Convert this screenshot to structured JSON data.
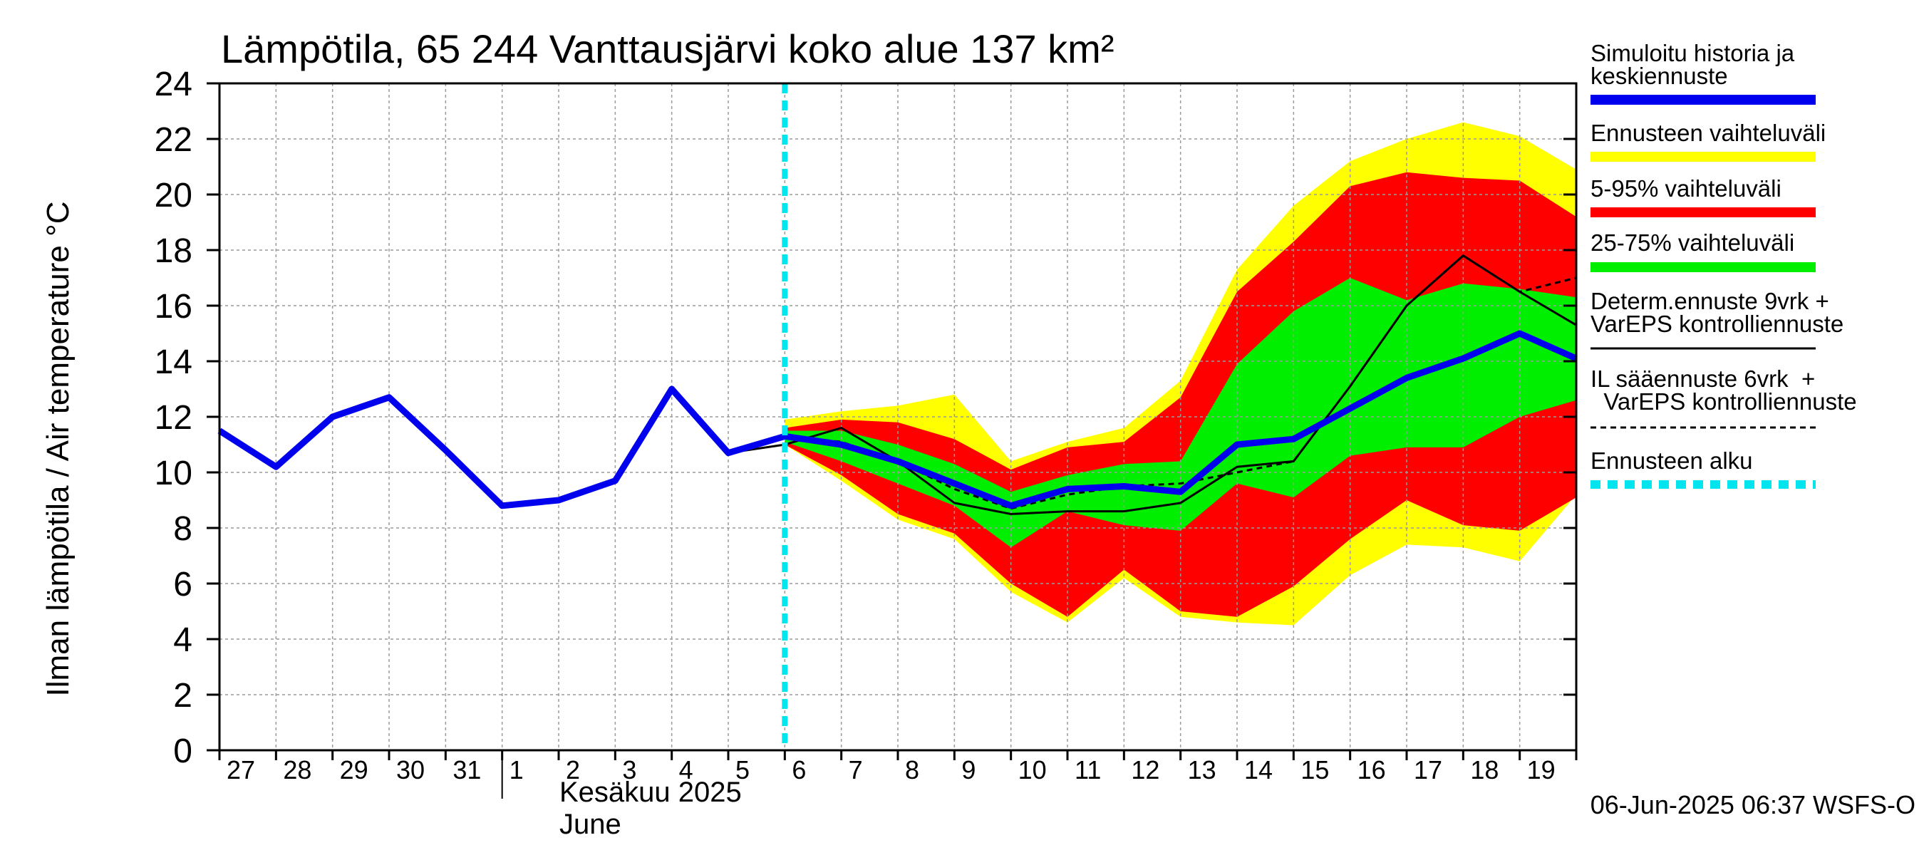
{
  "chart_data": {
    "type": "line",
    "title": "Lämpötila, 65 244 Vanttausjärvi koko alue 137 km²",
    "ylabel": "Ilman lämpötila / Air temperature   °C",
    "ylim": [
      0,
      24
    ],
    "yticks": [
      0,
      2,
      4,
      6,
      8,
      10,
      12,
      14,
      16,
      18,
      20,
      22,
      24
    ],
    "x_tick_labels": [
      "27",
      "28",
      "29",
      "30",
      "31",
      "1",
      "2",
      "3",
      "4",
      "5",
      "6",
      "7",
      "8",
      "9",
      "10",
      "11",
      "12",
      "13",
      "14",
      "15",
      "16",
      "17",
      "18",
      "19"
    ],
    "month_label_fi": "Kesäkuu  2025",
    "month_label_en": "June",
    "grid": true,
    "forecast_start_day": 10,
    "bands": {
      "full_range": {
        "x": [
          10,
          11,
          12,
          13,
          14,
          15,
          16,
          17,
          18,
          19,
          20,
          21,
          22,
          23,
          24
        ],
        "upper": [
          11.9,
          12.2,
          12.4,
          12.8,
          10.4,
          11.1,
          11.6,
          13.3,
          17.3,
          19.6,
          21.2,
          22.0,
          22.6,
          22.1,
          20.9
        ],
        "lower": [
          11.0,
          9.7,
          8.3,
          7.6,
          5.7,
          4.6,
          6.2,
          4.8,
          4.6,
          4.5,
          6.3,
          7.4,
          7.3,
          6.8,
          9.2
        ]
      },
      "p5_95": {
        "x": [
          10,
          11,
          12,
          13,
          14,
          15,
          16,
          17,
          18,
          19,
          20,
          21,
          22,
          23,
          24
        ],
        "upper": [
          11.6,
          11.9,
          11.8,
          11.2,
          10.1,
          10.9,
          11.1,
          12.7,
          16.5,
          18.3,
          20.3,
          20.8,
          20.6,
          20.5,
          19.2
        ],
        "lower": [
          11.0,
          9.9,
          8.5,
          7.8,
          6.0,
          4.8,
          6.5,
          5.0,
          4.8,
          5.9,
          7.6,
          9.0,
          8.1,
          7.9,
          9.1
        ]
      },
      "p25_75": {
        "x": [
          10,
          11,
          12,
          13,
          14,
          15,
          16,
          17,
          18,
          19,
          20,
          21,
          22,
          23,
          24
        ],
        "upper": [
          11.5,
          11.5,
          11.0,
          10.3,
          9.3,
          9.9,
          10.3,
          10.4,
          13.9,
          15.8,
          17.0,
          16.2,
          16.8,
          16.6,
          16.3
        ],
        "lower": [
          11.1,
          10.4,
          9.6,
          8.8,
          7.3,
          8.6,
          8.1,
          7.9,
          9.6,
          9.1,
          10.6,
          10.9,
          10.9,
          12.0,
          12.6
        ]
      }
    },
    "series": [
      {
        "name": "Simuloitu historia ja keskiennuste",
        "x": [
          0,
          1,
          2,
          3,
          4,
          5,
          6,
          7,
          8,
          9,
          10,
          11,
          12,
          13,
          14,
          15,
          16,
          17,
          18,
          19,
          20,
          21,
          22,
          23,
          24
        ],
        "values": [
          11.5,
          10.2,
          12.0,
          12.7,
          10.8,
          8.8,
          9.0,
          9.7,
          13.0,
          10.7,
          11.3,
          11.0,
          10.4,
          9.6,
          8.8,
          9.4,
          9.5,
          9.3,
          11.0,
          11.2,
          12.3,
          13.4,
          14.1,
          15.0,
          14.1
        ]
      },
      {
        "name": "Determ.ennuste 9vrk + VarEPS kontrolliennuste",
        "x": [
          8,
          9,
          10,
          11,
          12,
          13,
          14,
          15,
          16,
          17,
          18,
          19,
          20,
          21,
          22,
          23,
          24
        ],
        "values": [
          12.9,
          10.7,
          11.0,
          11.6,
          10.4,
          8.9,
          8.5,
          8.6,
          8.6,
          8.9,
          10.2,
          10.4,
          13.1,
          16.0,
          17.8,
          16.5,
          15.3
        ]
      },
      {
        "name": "IL sääennuste 6vrk + VarEPS kontrolliennuste",
        "x": [
          10,
          11,
          12,
          13,
          14,
          15,
          16,
          17,
          18,
          19,
          20,
          21,
          22,
          23,
          24
        ],
        "values": [
          11.3,
          11.1,
          10.4,
          9.4,
          8.7,
          9.2,
          9.5,
          9.6,
          10.0,
          10.4,
          13.1,
          16.0,
          17.8,
          16.5,
          17.0
        ]
      }
    ],
    "legend": {
      "placement": "right",
      "entries": [
        {
          "label_lines": [
            "Simuloitu historia ja",
            "keskiennuste"
          ],
          "color": "#0000ee",
          "style": "thick"
        },
        {
          "label_lines": [
            "Ennusteen vaihteluväli"
          ],
          "color": "#ffff00",
          "style": "thick"
        },
        {
          "label_lines": [
            "5-95% vaihteluväli"
          ],
          "color": "#ff0000",
          "style": "thick"
        },
        {
          "label_lines": [
            "25-75% vaihteluväli"
          ],
          "color": "#00ee00",
          "style": "thick"
        },
        {
          "label_lines": [
            "Determ.ennuste 9vrk +",
            "VarEPS kontrolliennuste"
          ],
          "color": "#000000",
          "style": "thin"
        },
        {
          "label_lines": [
            "IL sääennuste 6vrk  +",
            "  VarEPS kontrolliennuste"
          ],
          "color": "#000000",
          "style": "dashed"
        },
        {
          "label_lines": [
            "Ennusteen alku"
          ],
          "color": "#00e5ee",
          "style": "thick-dashed"
        }
      ]
    },
    "footer": "06-Jun-2025 06:37 WSFS-O",
    "colors": {
      "full_range": "#ffff00",
      "p5_95": "#ff0000",
      "p25_75": "#00ee00",
      "main_line": "#0000ee",
      "forecast_start": "#00e5ee",
      "grid": "#9a9a9a"
    }
  }
}
